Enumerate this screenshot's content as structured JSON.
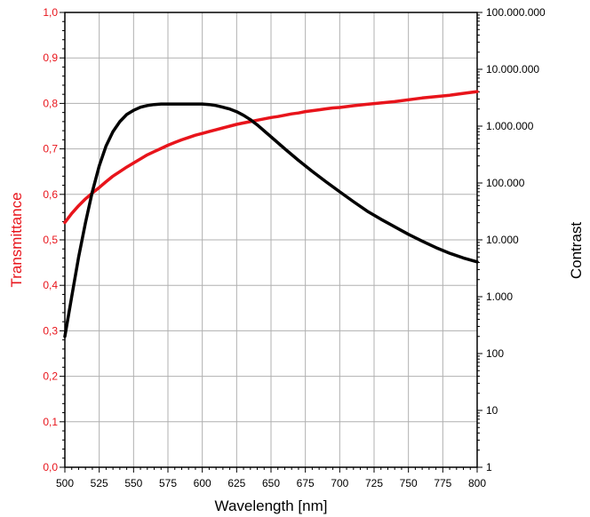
{
  "chart_data": {
    "type": "line",
    "xlabel": "Wavelength [nm]",
    "ylabel_left": "Transmittance",
    "ylabel_right": "Contrast",
    "xlim": [
      500,
      800
    ],
    "ylim_left": [
      0,
      1
    ],
    "ylim_right": [
      1,
      100000000
    ],
    "right_axis_scale": "log",
    "grid": true,
    "x_ticks": [
      "500",
      "525",
      "550",
      "575",
      "600",
      "625",
      "650",
      "675",
      "700",
      "725",
      "750",
      "775",
      "800"
    ],
    "y_left_ticks": [
      "0,0",
      "0,1",
      "0,2",
      "0,3",
      "0,4",
      "0,5",
      "0,6",
      "0,7",
      "0,8",
      "0,9",
      "1,0"
    ],
    "y_right_ticks": [
      "1",
      "10",
      "100",
      "1.000",
      "10.000",
      "100.000",
      "1.000.000",
      "10.000.000",
      "100.000.000"
    ],
    "colors": {
      "transmittance": "#e8141b",
      "contrast": "#000000",
      "grid": "#b0b0b0"
    },
    "series": [
      {
        "axis": "left",
        "color": "#e8141b",
        "x": [
          500,
          505,
          510,
          515,
          520,
          525,
          530,
          535,
          540,
          545,
          550,
          555,
          560,
          565,
          570,
          575,
          580,
          585,
          590,
          595,
          600,
          605,
          610,
          615,
          620,
          625,
          630,
          635,
          640,
          645,
          650,
          655,
          660,
          665,
          670,
          675,
          680,
          685,
          690,
          695,
          700,
          710,
          720,
          730,
          740,
          750,
          760,
          770,
          780,
          790,
          800
        ],
        "values": [
          0.538,
          0.558,
          0.575,
          0.59,
          0.603,
          0.615,
          0.628,
          0.64,
          0.65,
          0.66,
          0.669,
          0.678,
          0.687,
          0.694,
          0.701,
          0.708,
          0.714,
          0.72,
          0.725,
          0.73,
          0.734,
          0.738,
          0.742,
          0.746,
          0.75,
          0.754,
          0.757,
          0.76,
          0.763,
          0.766,
          0.769,
          0.771,
          0.774,
          0.777,
          0.779,
          0.782,
          0.784,
          0.786,
          0.788,
          0.79,
          0.791,
          0.795,
          0.798,
          0.801,
          0.804,
          0.808,
          0.812,
          0.815,
          0.818,
          0.822,
          0.826
        ]
      },
      {
        "axis": "right",
        "color": "#000000",
        "x": [
          500,
          505,
          510,
          515,
          520,
          525,
          530,
          535,
          540,
          545,
          550,
          555,
          560,
          565,
          570,
          575,
          580,
          585,
          590,
          595,
          600,
          605,
          610,
          615,
          620,
          625,
          630,
          635,
          640,
          650,
          660,
          670,
          680,
          690,
          700,
          710,
          720,
          730,
          740,
          750,
          760,
          770,
          780,
          790,
          800
        ],
        "values": [
          200,
          1000,
          5000,
          20000,
          70000,
          200000,
          450000,
          800000,
          1200000,
          1600000,
          1900000,
          2150000,
          2300000,
          2400000,
          2450000,
          2450000,
          2450000,
          2450000,
          2450000,
          2450000,
          2450000,
          2400000,
          2300000,
          2150000,
          2000000,
          1800000,
          1550000,
          1300000,
          1050000,
          650000,
          400000,
          250000,
          160000,
          105000,
          70000,
          47000,
          32000,
          23000,
          17000,
          12500,
          9500,
          7300,
          5800,
          4800,
          4100
        ]
      }
    ]
  }
}
